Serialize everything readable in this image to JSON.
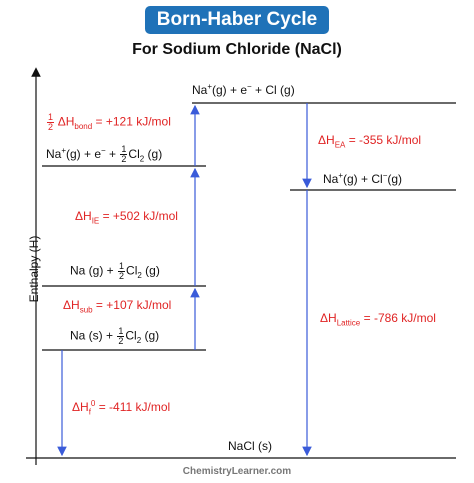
{
  "title": "Born-Haber Cycle",
  "subtitle": "For Sodium Chloride (NaCl)",
  "y_axis_label": "Enthalpy (H)",
  "footer": "ChemistryLearner.com",
  "colors": {
    "banner": "#1f72b8",
    "energy_label": "#e02424",
    "lines": "#111111",
    "arrows": "#3a5bd9"
  },
  "levels": {
    "top": {
      "a": "Na",
      "b": "+",
      "c": "(g)  +  e",
      "d": "−",
      "e": "  +  Cl (g)"
    },
    "ionized": {
      "a": "Na",
      "b": "+",
      "c": "(g)  +  e",
      "d": "−",
      "e": "  + ",
      "num": "1",
      "den": "2",
      "f": "Cl",
      "g": "2",
      "h": " (g)"
    },
    "atomized": {
      "a": "Na (g)   + ",
      "num": "1",
      "den": "2",
      "f": "Cl",
      "g": "2",
      "h": " (g)"
    },
    "elements": {
      "a": "Na (s)   + ",
      "num": "1",
      "den": "2",
      "f": "Cl",
      "g": "2",
      "h": " (g)"
    },
    "ions": {
      "a": "Na",
      "b": "+",
      "c": "(g)   +   Cl",
      "d": "−",
      "e": "(g)"
    },
    "product": {
      "a": "NaCl (s)"
    }
  },
  "steps": {
    "bond": {
      "num": "1",
      "den": "2",
      "a": " ΔH",
      "sub": "bond",
      "b": " = +121 kJ/mol"
    },
    "ie": {
      "a": "ΔH",
      "sub": "IE",
      "b": " = +502 kJ/mol"
    },
    "sub": {
      "a": "ΔH",
      "sub": "sub",
      "b": " = +107 kJ/mol"
    },
    "formation": {
      "a": "ΔH",
      "sub": "f",
      "sup": "0",
      "b": " = -411 kJ/mol"
    },
    "ea": {
      "a": "ΔH",
      "sub": "EA",
      "b": " = -355 kJ/mol"
    },
    "lattice": {
      "a": "ΔH",
      "sub": "Lattice",
      "b": " = -786 kJ/mol"
    }
  }
}
